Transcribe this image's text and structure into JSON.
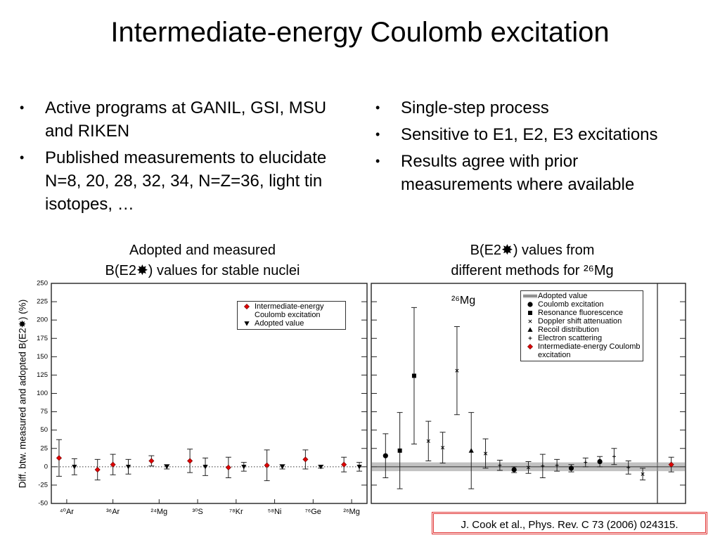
{
  "title": "Intermediate-energy Coulomb excitation",
  "bullets_left": [
    "Active programs at GANIL, GSI, MSU and RIKEN",
    "Published measurements to elucidate N=8, 20, 28, 32, 34, N=Z=36, light tin isotopes, …"
  ],
  "bullets_right": [
    "Single-step process",
    "Sensitive to E1, E2, E3 excitations",
    "Results agree with prior measurements where available"
  ],
  "reference": "J. Cook et al., Phys. Rev. C 73 (2006) 024315.",
  "chart_data": [
    {
      "type": "scatter",
      "title": [
        "Adopted and measured",
        "B(E2✸) values for stable nuclei"
      ],
      "ylabel": "Diff. btw. measured and adopted B(E2✸) (%)",
      "xlim": [
        0.5,
        21
      ],
      "ylim": [
        -50,
        250
      ],
      "yticks": [
        -50,
        -25,
        0,
        25,
        50,
        75,
        100,
        125,
        150,
        175,
        200,
        225,
        250
      ],
      "xticks": [
        {
          "value": 1.5,
          "label": "⁴⁰Ar"
        },
        {
          "value": 4.5,
          "label": "³⁶Ar"
        },
        {
          "value": 7.5,
          "label": "²⁴Mg"
        },
        {
          "value": 10,
          "label": "³⁰S"
        },
        {
          "value": 12.5,
          "label": "⁷⁸Kr"
        },
        {
          "value": 15,
          "label": "⁵⁸Ni"
        },
        {
          "value": 17.5,
          "label": "⁷⁶Ge"
        },
        {
          "value": 20,
          "label": "²⁶Mg"
        }
      ],
      "series": [
        {
          "name": "Intermediate-energy Coulomb excitation",
          "marker": "diamond",
          "color": "#e00000",
          "x": [
            1,
            3.5,
            4.5,
            7,
            9.5,
            12,
            14.5,
            17,
            19.5
          ],
          "values": [
            12,
            -4,
            3,
            8,
            8,
            -1,
            2,
            10,
            3
          ],
          "errors": [
            25,
            14,
            14,
            7,
            16,
            14,
            21,
            13,
            10
          ]
        },
        {
          "name": "Adopted value",
          "marker": "triangle-down",
          "color": "#000000",
          "x": [
            2,
            5.5,
            8,
            10.5,
            13,
            15.5,
            18,
            20.5
          ],
          "values": [
            0,
            0,
            0,
            0,
            0,
            0,
            0,
            0
          ],
          "errors": [
            11,
            10,
            3,
            12,
            6,
            3,
            2,
            6
          ]
        }
      ]
    },
    {
      "type": "scatter",
      "title": [
        "B(E2✸) values from",
        "different methods for ²⁶Mg"
      ],
      "annotation": "²⁶Mg",
      "tick_labels": false,
      "xlim": [
        0,
        22
      ],
      "ylim": [
        -50,
        250
      ],
      "yticks": [
        -50,
        -25,
        0,
        25,
        50,
        75,
        100,
        125,
        150,
        175,
        200,
        225,
        250
      ],
      "series": [
        {
          "name": "Adopted value",
          "marker": "band",
          "color": "#999999",
          "values": [
            0
          ],
          "errors": [
            6
          ]
        },
        {
          "name": "Coulomb excitation",
          "marker": "circle",
          "color": "#000000",
          "x": [
            1,
            10,
            14,
            16
          ],
          "values": [
            15,
            -4,
            -2,
            7
          ],
          "errors": [
            30,
            4,
            5,
            7
          ]
        },
        {
          "name": "Resonance fluorescence",
          "marker": "square",
          "color": "#000000",
          "x": [
            2,
            3
          ],
          "values": [
            22,
            124
          ],
          "errors": [
            52,
            93
          ]
        },
        {
          "name": "Doppler shift attenuation",
          "marker": "x",
          "color": "#000000",
          "x": [
            4,
            5,
            6,
            8,
            11,
            19
          ],
          "values": [
            35,
            26,
            131,
            18,
            -1,
            -10
          ],
          "errors": [
            27,
            21,
            60,
            20,
            8,
            8
          ]
        },
        {
          "name": "Recoil distribution",
          "marker": "triangle-up",
          "color": "#000000",
          "x": [
            7
          ],
          "values": [
            22
          ],
          "errors": [
            52
          ]
        },
        {
          "name": "Electron scattering",
          "marker": "plus",
          "color": "#000000",
          "x": [
            9,
            12,
            13,
            15,
            17,
            18
          ],
          "values": [
            2,
            1,
            2,
            6,
            14,
            -1
          ],
          "errors": [
            7,
            16,
            8,
            6,
            11,
            9
          ]
        },
        {
          "name": "Intermediate-energy Coulomb excitation",
          "marker": "diamond",
          "color": "#e00000",
          "x": [
            21
          ],
          "values": [
            3
          ],
          "errors": [
            10
          ]
        }
      ]
    }
  ]
}
